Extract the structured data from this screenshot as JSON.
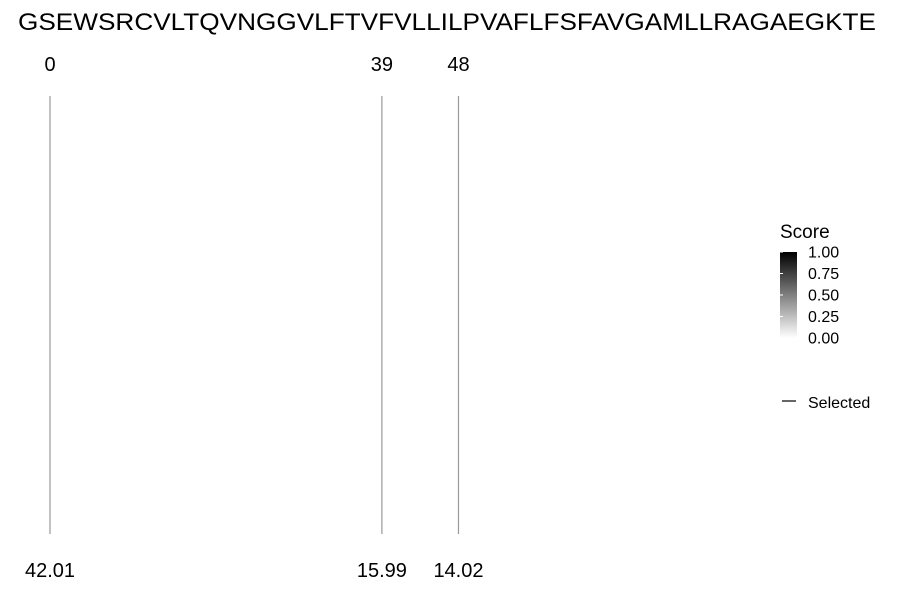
{
  "chart_data": {
    "type": "segments",
    "sequence": "GSEWSRCVLTQVNGGVLFTVFVLLILPVAFLFSFAVGAMLLRAGAEGKTE",
    "positions": [
      {
        "position": "0",
        "value": "42.01"
      },
      {
        "position": "39",
        "value": "15.99"
      },
      {
        "position": "48",
        "value": "14.02"
      }
    ],
    "legend": {
      "title": "Score",
      "ticks": [
        "1.00",
        "0.75",
        "0.50",
        "0.25",
        "0.00"
      ],
      "range": [
        0,
        1
      ],
      "colors": {
        "high": "#000000",
        "low": "#ffffff"
      },
      "selected_label": "Selected",
      "placement": "right"
    },
    "line_color": "#999999"
  }
}
